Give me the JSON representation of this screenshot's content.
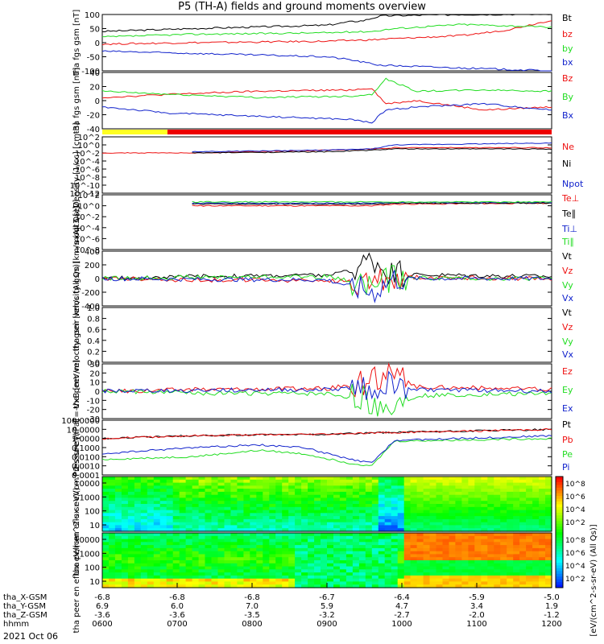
{
  "title": "P5 (TH-A) fields and ground moments overview",
  "colors": {
    "black": "#000000",
    "red": "#ee1111",
    "green": "#22dd22",
    "blue": "#1122cc",
    "bar_yellow": "#ffff22",
    "bar_red": "#ee0000"
  },
  "chart_data": [
    {
      "type": "line",
      "ylabel": "tha fgs gsm [nT]",
      "ylim": [
        -100,
        100
      ],
      "yticks": [
        "100",
        "50",
        "0",
        "-50",
        "-100"
      ],
      "series": [
        {
          "name": "Bt",
          "color": "black",
          "x": [
            0.0,
            0.2,
            0.5,
            0.55,
            0.58,
            0.62,
            0.8,
            0.85,
            1.0
          ],
          "values": [
            40,
            50,
            62,
            74,
            78,
            95,
            100,
            100,
            102
          ]
        },
        {
          "name": "bz",
          "color": "red",
          "x": [
            0.0,
            0.2,
            0.5,
            0.55,
            0.6,
            0.62,
            0.8,
            0.9,
            1.0
          ],
          "values": [
            -5,
            0,
            5,
            8,
            10,
            12,
            25,
            45,
            80
          ]
        },
        {
          "name": "by",
          "color": "green",
          "x": [
            0.0,
            0.2,
            0.5,
            0.55,
            0.6,
            0.65,
            0.8,
            0.9,
            1.0
          ],
          "values": [
            20,
            30,
            35,
            38,
            40,
            50,
            65,
            60,
            55
          ]
        },
        {
          "name": "bx",
          "color": "blue",
          "x": [
            0.0,
            0.2,
            0.5,
            0.55,
            0.6,
            0.62,
            0.8,
            0.9,
            1.0
          ],
          "values": [
            -30,
            -38,
            -50,
            -60,
            -75,
            -80,
            -90,
            -95,
            -100
          ]
        }
      ]
    },
    {
      "type": "line",
      "ylabel": "tha fgs gsm [nT]",
      "ylim": [
        -50,
        40
      ],
      "yticks": [
        "40",
        "20",
        "0",
        "-20",
        "-40"
      ],
      "series": [
        {
          "name": "Bz",
          "color": "red",
          "x": [
            0.0,
            0.15,
            0.35,
            0.55,
            0.6,
            0.63,
            0.7,
            0.85,
            1.0
          ],
          "values": [
            0,
            5,
            10,
            12,
            15,
            -10,
            -5,
            -20,
            -15
          ]
        },
        {
          "name": "By",
          "color": "green",
          "x": [
            0.0,
            0.15,
            0.35,
            0.55,
            0.6,
            0.63,
            0.7,
            0.85,
            1.0
          ],
          "values": [
            10,
            5,
            0,
            2,
            5,
            30,
            10,
            12,
            10
          ]
        },
        {
          "name": "Bx",
          "color": "blue",
          "x": [
            0.0,
            0.15,
            0.35,
            0.55,
            0.6,
            0.63,
            0.7,
            0.85,
            1.0
          ],
          "values": [
            -15,
            -25,
            -30,
            -35,
            -40,
            -20,
            -15,
            -10,
            -20
          ]
        }
      ]
    },
    {
      "type": "line",
      "ylabel": "Density [1/cc] [cm-3]",
      "ylim": [
        "1e-12",
        "1e2"
      ],
      "yticks": [
        "10^2",
        "10^0",
        "10^-2",
        "10^-4",
        "10^-6",
        "10^-8",
        "10^-10",
        "10^-12"
      ],
      "series": [
        {
          "name": "Ne",
          "color": "red",
          "x": [
            0.0,
            0.2,
            0.5,
            0.6,
            0.65,
            1.0
          ],
          "values": [
            0.01,
            0.01,
            0.05,
            0.1,
            0.2,
            0.2
          ]
        },
        {
          "name": "Ni",
          "color": "black",
          "x": [
            0.2,
            0.5,
            0.6,
            0.65,
            1.0
          ],
          "values": [
            0.01,
            0.02,
            0.05,
            0.1,
            0.1
          ]
        },
        {
          "name": "Npot",
          "color": "blue",
          "x": [
            0.2,
            0.5,
            0.6,
            0.65,
            1.0
          ],
          "values": [
            0.02,
            0.05,
            0.1,
            1,
            3
          ]
        }
      ]
    },
    {
      "type": "line",
      "ylabel": "moqt3 [eV]",
      "ylim": [
        "1e-8",
        "1e2"
      ],
      "yticks": [
        "10^2",
        "10^0",
        "10^-2",
        "10^-4",
        "10^-6",
        "10^-8"
      ],
      "series": [
        {
          "name": "Te⊥",
          "color": "red",
          "x": [
            0.2,
            0.5,
            0.6,
            0.65,
            1.0
          ],
          "values": [
            1,
            1,
            1,
            2,
            3
          ]
        },
        {
          "name": "Te∥",
          "color": "black",
          "x": [
            0.2,
            0.5,
            0.6,
            0.65,
            1.0
          ],
          "values": [
            2,
            2,
            2,
            3,
            3
          ]
        },
        {
          "name": "Ti⊥",
          "color": "blue",
          "x": [
            0.2,
            0.5,
            0.6,
            0.65,
            1.0
          ],
          "values": [
            3,
            3,
            3,
            4,
            4
          ]
        },
        {
          "name": "Ti∥",
          "color": "green",
          "x": [
            0.2,
            0.5,
            0.6,
            0.65,
            1.0
          ],
          "values": [
            5,
            5,
            5,
            5,
            5
          ]
        }
      ]
    },
    {
      "type": "line",
      "ylabel": "tha peir velocity gsm [km/s (All Qs)]",
      "ylim": [
        -400,
        400
      ],
      "yticks": [
        "400",
        "200",
        "0",
        "-200",
        "-400"
      ],
      "series": [
        {
          "name": "Vt",
          "color": "black",
          "x": [
            0.0,
            0.2,
            0.5,
            0.55,
            0.6,
            0.65,
            1.0
          ],
          "values": [
            0,
            30,
            50,
            100,
            300,
            60,
            30
          ]
        },
        {
          "name": "Vz",
          "color": "red",
          "x": [
            0.0,
            0.2,
            0.5,
            0.6,
            0.65,
            1.0
          ],
          "values": [
            0,
            -20,
            -30,
            -60,
            20,
            0
          ]
        },
        {
          "name": "Vy",
          "color": "green",
          "x": [
            0.0,
            0.2,
            0.5,
            0.6,
            0.65,
            1.0
          ],
          "values": [
            0,
            20,
            30,
            -100,
            10,
            0
          ]
        },
        {
          "name": "Vx",
          "color": "blue",
          "x": [
            0.0,
            0.2,
            0.5,
            0.6,
            0.65,
            1.0
          ],
          "values": [
            0,
            -10,
            -20,
            -200,
            0,
            0
          ]
        }
      ]
    },
    {
      "type": "line",
      "ylabel": "tha peer velocity gsm [km/s (All Qs)]",
      "ylim": [
        0.0,
        1.0
      ],
      "yticks": [
        "1.0",
        "0.8",
        "0.6",
        "0.4",
        "0.2",
        "0.0"
      ],
      "series": [
        {
          "name": "Vt",
          "color": "black",
          "x": [],
          "values": []
        },
        {
          "name": "Vz",
          "color": "red",
          "x": [],
          "values": []
        },
        {
          "name": "Vy",
          "color": "green",
          "x": [],
          "values": []
        },
        {
          "name": "Vx",
          "color": "blue",
          "x": [],
          "values": []
        }
      ]
    },
    {
      "type": "line",
      "ylabel": "E=-VxB [mV/m]",
      "ylim": [
        -30,
        30
      ],
      "yticks": [
        "30",
        "20",
        "10",
        "0",
        "-10",
        "-20",
        "-30"
      ],
      "series": [
        {
          "name": "Ez",
          "color": "red",
          "x": [
            0.0,
            0.2,
            0.5,
            0.6,
            0.63,
            0.7,
            1.0
          ],
          "values": [
            0,
            2,
            3,
            10,
            20,
            5,
            2
          ]
        },
        {
          "name": "Ey",
          "color": "green",
          "x": [
            0.0,
            0.2,
            0.5,
            0.6,
            0.63,
            0.7,
            1.0
          ],
          "values": [
            0,
            -2,
            -3,
            -10,
            -20,
            -5,
            -2
          ]
        },
        {
          "name": "Ex",
          "color": "blue",
          "x": [
            0.0,
            0.2,
            0.5,
            0.6,
            0.63,
            0.7,
            1.0
          ],
          "values": [
            0,
            1,
            2,
            5,
            10,
            2,
            0
          ]
        }
      ]
    },
    {
      "type": "line",
      "ylabel": "Pressure [nPa]",
      "ylim": [
        0.0001,
        100
      ],
      "yticks": [
        "100.0000",
        "10.0000",
        "1.0000",
        "0.1000",
        "0.0100",
        "0.0010",
        "0.0001"
      ],
      "series": [
        {
          "name": "Pt",
          "color": "black",
          "x": [
            0.0,
            0.2,
            0.5,
            0.6,
            1.0
          ],
          "values": [
            1,
            2,
            3,
            4,
            10
          ]
        },
        {
          "name": "Pb",
          "color": "red",
          "x": [
            0.0,
            0.2,
            0.5,
            0.6,
            1.0
          ],
          "values": [
            1,
            2,
            3,
            4,
            10
          ]
        },
        {
          "name": "Pe",
          "color": "green",
          "x": [
            0.0,
            0.2,
            0.35,
            0.45,
            0.55,
            0.6,
            0.65,
            1.0
          ],
          "values": [
            0.005,
            0.01,
            0.05,
            0.02,
            0.002,
            0.001,
            0.5,
            1
          ]
        },
        {
          "name": "Pi",
          "color": "blue",
          "x": [
            0.0,
            0.2,
            0.35,
            0.45,
            0.55,
            0.6,
            0.65,
            1.0
          ],
          "values": [
            0.02,
            0.1,
            0.2,
            0.1,
            0.005,
            0.002,
            0.6,
            2
          ]
        }
      ]
    },
    {
      "type": "heatmap",
      "ylabel": "tha peir en eflux eV/(cm^2-s-sr-eV)",
      "yticks": [
        "10000",
        "1000",
        "100",
        "10"
      ]
    },
    {
      "type": "heatmap",
      "ylabel": "tha peer en eflux eV/(cm^2-s-sr-eV)",
      "yticks": [
        "10000",
        "1000",
        "100",
        "10"
      ]
    }
  ],
  "colorbar": {
    "label": "[eV/(cm^2-s-sr-eV) (All Qs)]",
    "ticks": [
      "10^8",
      "10^6",
      "10^4",
      "10^2"
    ]
  },
  "x_axis": {
    "ticks": [
      "0600",
      "0700",
      "0800",
      "0900",
      "1000",
      "1100",
      "1200"
    ],
    "rows": [
      {
        "label": "tha_X-GSM",
        "values": [
          "-6.8",
          "-6.8",
          "-6.8",
          "-6.7",
          "-6.4",
          "-5.9",
          "-5.0"
        ]
      },
      {
        "label": "tha_Y-GSM",
        "values": [
          "6.9",
          "6.0",
          "7.0",
          "5.9",
          "4.7",
          "3.4",
          "1.9"
        ]
      },
      {
        "label": "tha_Z-GSM",
        "values": [
          "-3.6",
          "-3.6",
          "-3.5",
          "-3.2",
          "-2.7",
          "-2.0",
          "-1.2"
        ]
      },
      {
        "label": "hhmm",
        "values": [
          "0600",
          "0700",
          "0800",
          "0900",
          "1000",
          "1100",
          "1200"
        ]
      }
    ],
    "date": "2021 Oct 06"
  }
}
